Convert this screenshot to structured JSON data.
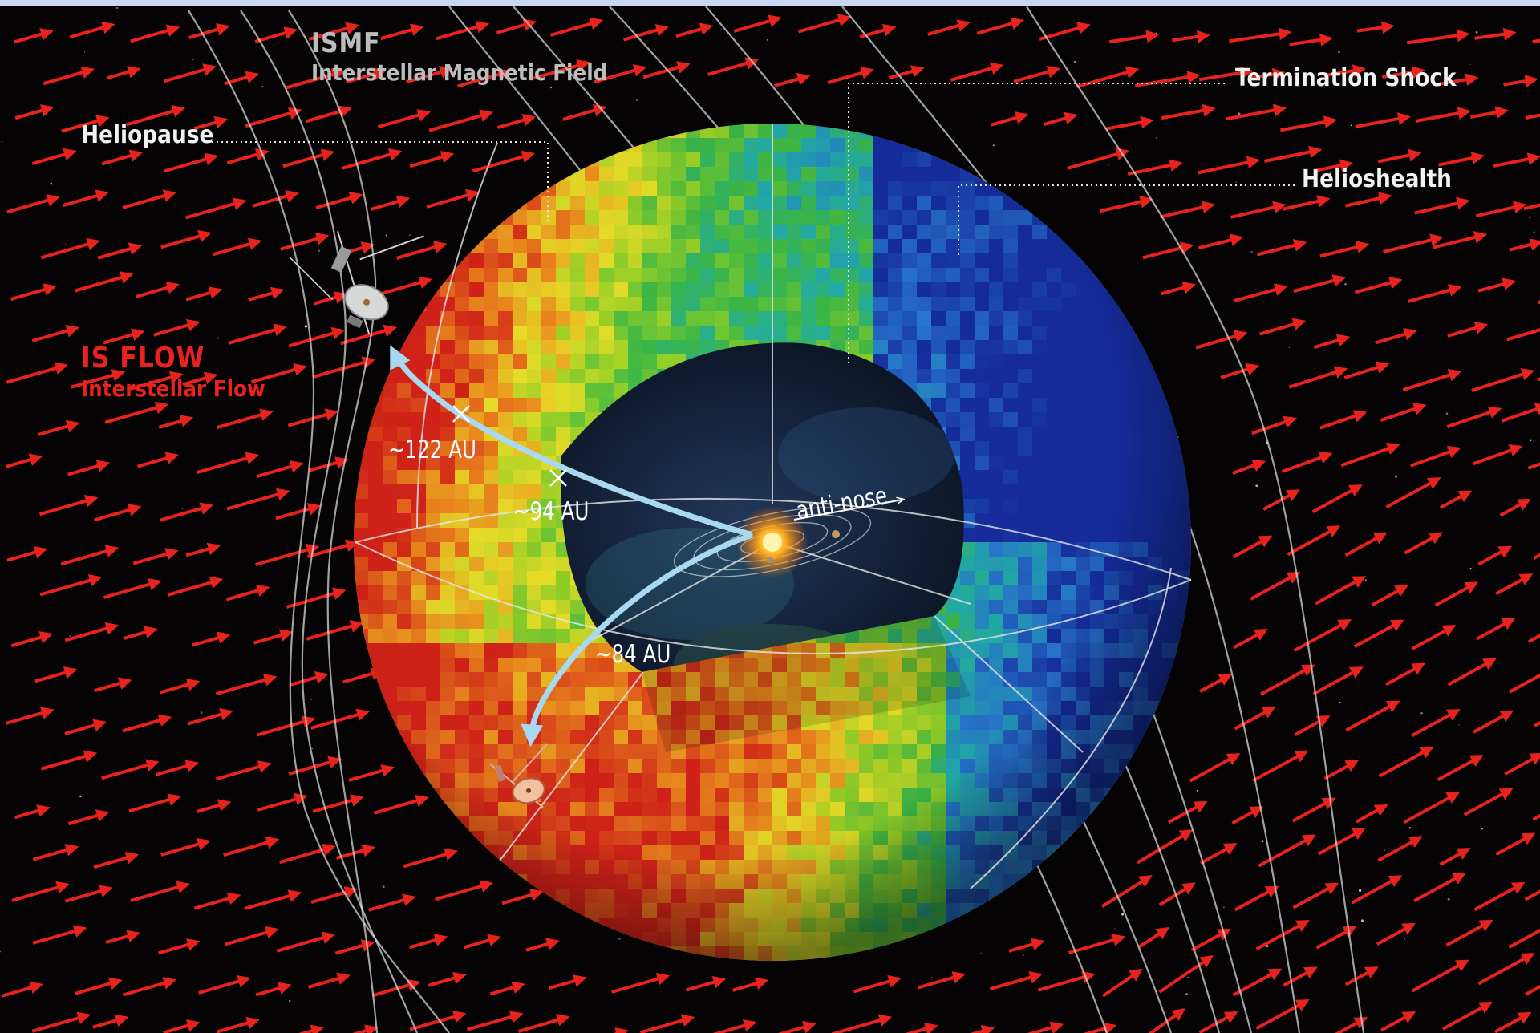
{
  "labels": {
    "ismf_title": "ISMF",
    "ismf_subtitle": "Interstellar Magnetic Field",
    "termination_shock": "Termination Shock",
    "heliopause": "Heliopause",
    "heliosheath": "Helioshealth",
    "is_flow_title": "IS FLOW",
    "is_flow_subtitle": "Interstellar Flow",
    "au_122": "~122 AU",
    "au_94": "~94 AU",
    "au_84": "~84 AU",
    "anti_nose": "anti-nose"
  },
  "colors": {
    "background": "#050303",
    "flow_arrows": "#e8231e",
    "field_lines": "#d8d8d8",
    "trajectory": "#a9d8f2",
    "map_high": "#d8261a",
    "map_mid": "#3fbf4a",
    "map_low": "#1e3fa8",
    "sun": "#ffb020"
  },
  "icons": [
    "voyager-1-spacecraft-icon",
    "voyager-2-spacecraft-icon",
    "sun-icon"
  ]
}
